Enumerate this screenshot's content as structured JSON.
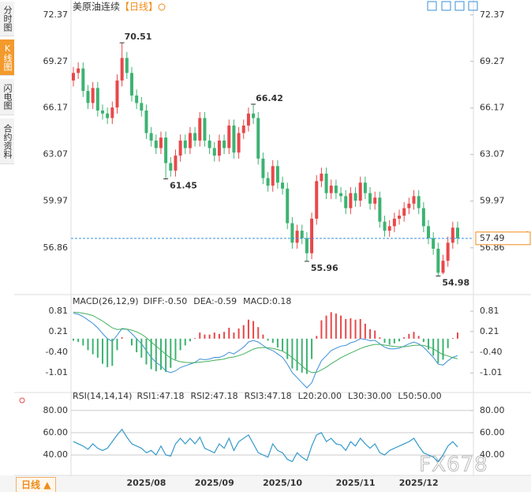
{
  "header": {
    "title": "美原油连续",
    "period": "【日线】"
  },
  "sidebar": {
    "tabs": [
      "分时图",
      "K线图",
      "闪电图",
      "合约资料"
    ],
    "active": 1
  },
  "footer": {
    "period": "日线"
  },
  "watermark": "FX678",
  "chart_data": [
    {
      "type": "candlestick",
      "up_color": "#e8484a",
      "down_color": "#3cb371",
      "line_color": "#3a8fd9",
      "categories": [
        null,
        null,
        null,
        null,
        null,
        null,
        null,
        null,
        null,
        null,
        null,
        null,
        null,
        null,
        null,
        "2025/08",
        null,
        null,
        null,
        null,
        null,
        null,
        null,
        null,
        null,
        null,
        null,
        null,
        null,
        "2025/09",
        null,
        null,
        null,
        null,
        null,
        null,
        null,
        null,
        null,
        null,
        null,
        null,
        null,
        "2025/10",
        null,
        null,
        null,
        null,
        null,
        null,
        null,
        null,
        null,
        null,
        null,
        null,
        null,
        null,
        "2025/11",
        null,
        null,
        null,
        null,
        null,
        null,
        null,
        null,
        null,
        null,
        null,
        null,
        "2025/12",
        null,
        null,
        null,
        null,
        null,
        null,
        null,
        null
      ],
      "open": [
        68.0,
        68.5,
        68.8,
        67.3,
        66.5,
        67.5,
        66.0,
        65.8,
        65.5,
        66.2,
        68.0,
        69.5,
        68.5,
        67.0,
        66.5,
        66.0,
        64.5,
        64.0,
        63.5,
        64.2,
        62.5,
        62.0,
        63.0,
        64.0,
        63.5,
        64.5,
        64.0,
        65.5,
        64.0,
        63.5,
        63.0,
        64.0,
        63.5,
        65.0,
        63.2,
        64.5,
        65.0,
        65.8,
        65.5,
        62.8,
        61.5,
        61.0,
        62.3,
        61.2,
        60.8,
        58.5,
        57.2,
        58.0,
        57.5,
        56.5,
        58.8,
        61.3,
        61.8,
        60.5,
        61.0,
        60.5,
        60.3,
        59.5,
        60.5,
        60.0,
        61.2,
        60.5,
        59.8,
        60.2,
        58.6,
        58.0,
        58.3,
        58.8,
        59.0,
        59.5,
        59.8,
        60.3,
        59.5,
        58.3,
        57.5,
        56.8,
        55.2,
        56.0,
        57.2,
        58.2
      ],
      "high": [
        68.9,
        69.2,
        69.2,
        67.7,
        67.9,
        67.9,
        66.4,
        66.2,
        66.6,
        68.4,
        70.51,
        69.9,
        68.9,
        67.4,
        66.9,
        66.4,
        64.9,
        64.4,
        64.6,
        64.6,
        62.9,
        63.4,
        64.4,
        64.4,
        64.9,
        64.9,
        65.9,
        65.9,
        64.4,
        63.9,
        64.4,
        64.4,
        65.4,
        65.4,
        64.9,
        65.4,
        66.2,
        66.42,
        65.9,
        63.2,
        61.9,
        62.7,
        62.7,
        61.6,
        61.2,
        58.9,
        58.4,
        58.4,
        57.9,
        59.2,
        61.7,
        62.2,
        62.2,
        61.4,
        61.4,
        60.9,
        60.7,
        60.9,
        60.9,
        61.6,
        61.6,
        60.9,
        60.6,
        60.6,
        59.0,
        58.7,
        59.2,
        59.4,
        59.9,
        60.2,
        60.7,
        60.7,
        59.9,
        58.7,
        57.9,
        57.2,
        56.4,
        57.6,
        58.6,
        58.6
      ],
      "low": [
        67.6,
        68.1,
        66.9,
        66.1,
        66.1,
        65.6,
        65.4,
        65.1,
        65.1,
        65.8,
        67.6,
        68.1,
        66.6,
        66.1,
        65.6,
        64.1,
        63.6,
        63.1,
        63.1,
        61.45,
        61.6,
        61.6,
        62.6,
        63.1,
        63.1,
        63.6,
        63.6,
        63.6,
        63.1,
        62.6,
        62.6,
        63.1,
        63.1,
        62.8,
        62.8,
        64.1,
        64.6,
        65.1,
        62.4,
        61.1,
        60.6,
        60.6,
        60.8,
        60.4,
        58.1,
        56.8,
        56.8,
        57.1,
        55.96,
        56.1,
        58.4,
        60.9,
        60.1,
        60.1,
        60.1,
        59.9,
        59.1,
        59.1,
        59.6,
        59.6,
        60.1,
        59.4,
        59.4,
        58.2,
        57.6,
        57.6,
        57.9,
        58.4,
        58.6,
        59.1,
        59.4,
        59.1,
        57.9,
        57.1,
        56.4,
        54.98,
        55.1,
        55.6,
        56.8,
        57.09
      ],
      "close": [
        68.5,
        68.8,
        67.3,
        66.5,
        67.5,
        66.0,
        65.8,
        65.5,
        66.2,
        68.0,
        69.5,
        68.5,
        67.0,
        66.5,
        66.0,
        64.5,
        64.0,
        63.5,
        64.2,
        62.5,
        62.0,
        63.0,
        64.0,
        63.5,
        64.5,
        64.0,
        65.5,
        64.0,
        63.5,
        63.0,
        64.0,
        63.5,
        65.0,
        63.2,
        64.5,
        65.0,
        65.8,
        65.5,
        62.8,
        61.5,
        61.0,
        62.3,
        61.2,
        60.8,
        58.5,
        57.2,
        58.0,
        57.5,
        56.5,
        58.8,
        61.3,
        61.8,
        60.5,
        61.0,
        60.5,
        60.3,
        59.5,
        60.5,
        60.0,
        61.2,
        60.5,
        59.8,
        60.2,
        58.6,
        58.0,
        58.3,
        58.8,
        59.0,
        59.5,
        59.8,
        60.3,
        59.5,
        58.3,
        57.5,
        56.8,
        55.2,
        56.0,
        57.2,
        58.2,
        57.49
      ],
      "ylim": [
        53.8,
        73.2
      ],
      "yticks": [
        72.37,
        69.27,
        66.17,
        63.07,
        59.97,
        56.86
      ],
      "grid": false
    },
    {
      "type": "line",
      "title": "MACD(26,12,9)",
      "ylim": [
        -1.54,
        1.02
      ],
      "yticks": [
        0.81,
        0.21,
        {
          "value": -0.4,
          "label": "-0.40"
        },
        -1.01
      ],
      "grid": false,
      "series": [
        {
          "name": "DIFF:-0.50",
          "color": "#3a8fd9",
          "values": [
            0.75,
            0.72,
            0.65,
            0.55,
            0.45,
            0.32,
            0.15,
            0.0,
            -0.08,
            0.1,
            0.3,
            0.28,
            0.15,
            0.0,
            -0.15,
            -0.35,
            -0.55,
            -0.7,
            -0.8,
            -0.95,
            -1.0,
            -0.95,
            -0.85,
            -0.8,
            -0.75,
            -0.7,
            -0.6,
            -0.62,
            -0.6,
            -0.55,
            -0.55,
            -0.5,
            -0.4,
            -0.45,
            -0.35,
            -0.25,
            -0.1,
            -0.05,
            -0.1,
            -0.2,
            -0.3,
            -0.35,
            -0.45,
            -0.55,
            -0.75,
            -1.0,
            -1.15,
            -1.3,
            -1.45,
            -1.3,
            -0.95,
            -0.65,
            -0.5,
            -0.35,
            -0.28,
            -0.22,
            -0.2,
            -0.12,
            -0.08,
            0.0,
            -0.02,
            -0.06,
            -0.05,
            -0.15,
            -0.25,
            -0.3,
            -0.3,
            -0.28,
            -0.22,
            -0.15,
            -0.1,
            -0.15,
            -0.25,
            -0.4,
            -0.55,
            -0.75,
            -0.78,
            -0.65,
            -0.55,
            -0.5
          ]
        },
        {
          "name": "DEA:-0.59",
          "color": "#43b05c",
          "values": [
            0.78,
            0.77,
            0.75,
            0.72,
            0.68,
            0.6,
            0.52,
            0.42,
            0.32,
            0.27,
            0.28,
            0.28,
            0.25,
            0.2,
            0.13,
            0.03,
            -0.1,
            -0.22,
            -0.34,
            -0.46,
            -0.57,
            -0.64,
            -0.68,
            -0.7,
            -0.71,
            -0.71,
            -0.69,
            -0.68,
            -0.66,
            -0.64,
            -0.62,
            -0.6,
            -0.56,
            -0.54,
            -0.5,
            -0.45,
            -0.38,
            -0.31,
            -0.27,
            -0.26,
            -0.27,
            -0.29,
            -0.32,
            -0.37,
            -0.45,
            -0.56,
            -0.68,
            -0.8,
            -0.93,
            -1.0,
            -0.99,
            -0.92,
            -0.84,
            -0.74,
            -0.65,
            -0.56,
            -0.49,
            -0.42,
            -0.36,
            -0.29,
            -0.24,
            -0.2,
            -0.17,
            -0.17,
            -0.19,
            -0.21,
            -0.23,
            -0.24,
            -0.24,
            -0.22,
            -0.2,
            -0.19,
            -0.2,
            -0.24,
            -0.3,
            -0.39,
            -0.47,
            -0.51,
            -0.56,
            -0.59
          ]
        },
        {
          "name": "MACD:0.18",
          "type": "bar",
          "color": "#5aa7e0",
          "up_color": "#e8484a",
          "down_color": "#3cb371",
          "values": [
            -0.06,
            -0.1,
            -0.2,
            -0.34,
            -0.46,
            -0.56,
            -0.74,
            -0.84,
            -0.8,
            -0.34,
            0.04,
            0,
            -0.2,
            -0.4,
            -0.56,
            -0.76,
            -0.9,
            -0.96,
            -0.92,
            -0.98,
            -0.86,
            -0.62,
            -0.34,
            -0.2,
            -0.08,
            0.02,
            0.18,
            0.12,
            0.12,
            0.18,
            0.14,
            0.2,
            0.32,
            0.18,
            0.3,
            0.4,
            0.56,
            0.52,
            0.34,
            0.12,
            -0.06,
            -0.12,
            -0.26,
            -0.36,
            -0.6,
            -0.88,
            -0.94,
            -1.0,
            -1.04,
            -0.6,
            0.08,
            0.54,
            0.68,
            0.78,
            0.74,
            0.68,
            0.58,
            0.6,
            0.56,
            0.58,
            0.44,
            0.28,
            0.24,
            0.04,
            -0.12,
            -0.18,
            -0.14,
            -0.08,
            0.04,
            0.14,
            0.2,
            0.08,
            -0.1,
            -0.32,
            -0.5,
            -0.72,
            -0.62,
            -0.28,
            0.02,
            0.18
          ]
        }
      ]
    },
    {
      "type": "line",
      "title": "RSI(14,14,14)",
      "ylim": [
        23,
        90.5
      ],
      "yticks": [
        {
          "value": 80,
          "label": "80.00"
        },
        {
          "value": 60,
          "label": "60.00"
        },
        {
          "value": 40,
          "label": "40.00"
        }
      ],
      "grid": true,
      "levels": [
        "L20:20.00",
        "L30:30.00",
        "L50:50.00"
      ],
      "series": [
        {
          "name": "RSI1:47.18",
          "color": "#3a8fd9",
          "values": [
            52,
            50,
            48,
            45,
            50,
            46,
            44,
            46,
            52,
            58,
            63,
            56,
            50,
            48,
            46,
            42,
            44,
            40,
            48,
            40,
            39,
            50,
            55,
            50,
            55,
            50,
            56,
            46,
            44,
            42,
            50,
            46,
            55,
            44,
            52,
            55,
            58,
            50,
            42,
            40,
            38,
            50,
            44,
            42,
            36,
            34,
            42,
            38,
            35,
            48,
            58,
            60,
            52,
            55,
            50,
            49,
            44,
            52,
            48,
            55,
            50,
            46,
            50,
            42,
            40,
            44,
            46,
            48,
            50,
            52,
            55,
            48,
            42,
            40,
            38,
            34,
            40,
            48,
            52,
            47.18
          ]
        },
        {
          "name": "RSI2:47.18",
          "color": "#43b05c",
          "values": [
            52,
            50,
            48,
            45,
            50,
            46,
            44,
            46,
            52,
            58,
            63,
            56,
            50,
            48,
            46,
            42,
            44,
            40,
            48,
            40,
            39,
            50,
            55,
            50,
            55,
            50,
            56,
            46,
            44,
            42,
            50,
            46,
            55,
            44,
            52,
            55,
            58,
            50,
            42,
            40,
            38,
            50,
            44,
            42,
            36,
            34,
            42,
            38,
            35,
            48,
            58,
            60,
            52,
            55,
            50,
            49,
            44,
            52,
            48,
            55,
            50,
            46,
            50,
            42,
            40,
            44,
            46,
            48,
            50,
            52,
            55,
            48,
            42,
            40,
            38,
            34,
            40,
            48,
            52,
            47.18
          ]
        },
        {
          "name": "RSI3:47.18",
          "color": "#3a9bdc",
          "values": [
            52,
            50,
            48,
            45,
            50,
            46,
            44,
            46,
            52,
            58,
            63,
            56,
            50,
            48,
            46,
            42,
            44,
            40,
            48,
            40,
            39,
            50,
            55,
            50,
            55,
            50,
            56,
            46,
            44,
            42,
            50,
            46,
            55,
            44,
            52,
            55,
            58,
            50,
            42,
            40,
            38,
            50,
            44,
            42,
            36,
            34,
            42,
            38,
            35,
            48,
            58,
            60,
            52,
            55,
            50,
            49,
            44,
            52,
            48,
            55,
            50,
            46,
            50,
            42,
            40,
            44,
            46,
            48,
            50,
            52,
            55,
            48,
            42,
            40,
            38,
            34,
            40,
            48,
            52,
            47.18
          ]
        }
      ]
    }
  ]
}
